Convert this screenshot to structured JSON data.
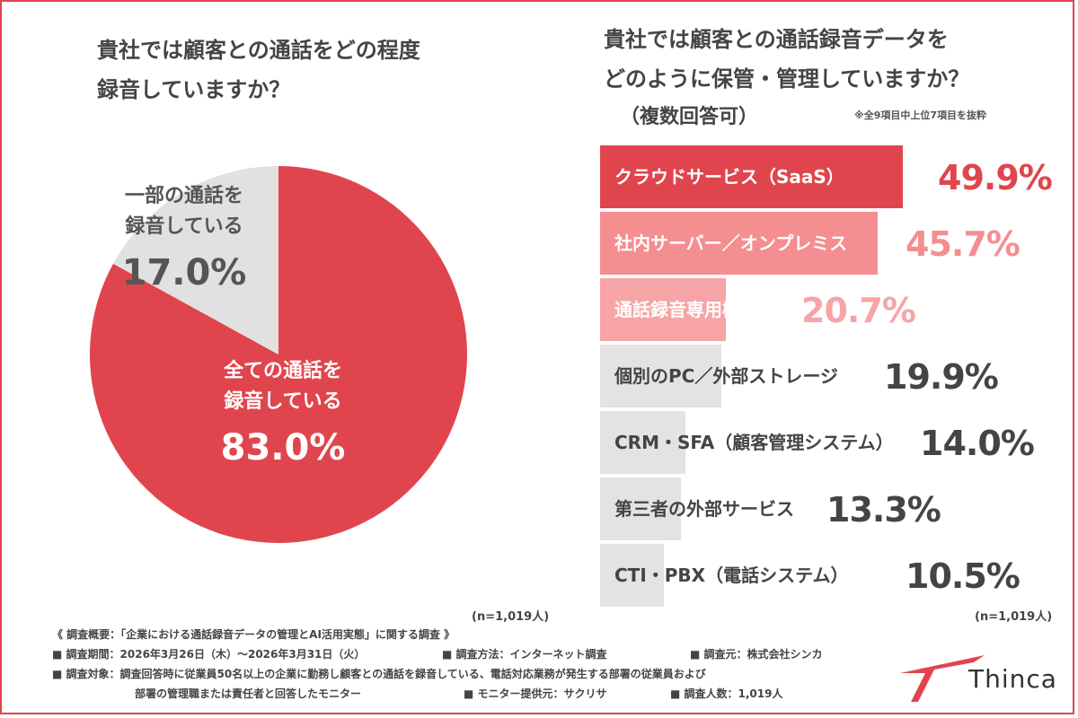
{
  "left_chart": {
    "title_line1": "貴社では顧客との通話をどの程度",
    "title_line2": "録音していますか？",
    "n_label": "(n=1,019人)"
  },
  "right_chart": {
    "title_line1": "貴社では顧客との通話録音データを",
    "title_line2": "どのように保管・管理していますか？",
    "subtitle": "（複数回答可）",
    "note": "※全9項目中上位7項目を抜粋",
    "n_label": "(n=1,019人)"
  },
  "chart_data": [
    {
      "type": "pie",
      "slices": [
        {
          "label_line1": "全ての通話を",
          "label_line2": "録音している",
          "value": 83.0,
          "value_label": "83.0%",
          "color": "#e0454d",
          "label_color": "#ffffff"
        },
        {
          "label_line1": "一部の通話を",
          "label_line2": "録音している",
          "value": 17.0,
          "value_label": "17.0%",
          "color": "#e1e1e1",
          "label_color": "#555555"
        }
      ]
    },
    {
      "type": "bar",
      "orientation": "horizontal",
      "xlim": [
        0,
        50
      ],
      "categories": [
        "クラウドサービス（SaaS）",
        "社内サーバー／オンプレミス",
        "通話録音専用機器",
        "個別のPC／外部ストレージ",
        "CRM・SFA（顧客管理システム）",
        "第三者の外部サービス",
        "CTI・PBX（電話システム）"
      ],
      "values": [
        49.9,
        45.7,
        20.7,
        19.9,
        14.0,
        13.3,
        10.5
      ],
      "value_labels": [
        "49.9%",
        "45.7%",
        "20.7%",
        "19.9%",
        "14.0%",
        "13.3%",
        "10.5%"
      ],
      "bar_colors": [
        "#e0454d",
        "#f48e90",
        "#f6a4a6",
        "#e3e3e3",
        "#e3e3e3",
        "#e3e3e3",
        "#e3e3e3"
      ],
      "label_colors": [
        "#ffffff",
        "#ffffff",
        "#ffffff",
        "#444444",
        "#444444",
        "#444444",
        "#444444"
      ],
      "value_colors": [
        "#e0454d",
        "#f48e90",
        "#f6a4a6",
        "#444444",
        "#444444",
        "#444444",
        "#444444"
      ]
    }
  ],
  "footer": {
    "overview": "《 調査概要：「企業における通話録音データの管理とAI活用実態」に関する調査 》",
    "period": "■ 調査期間：2026年3月26日（木）〜2026年3月31日（火）",
    "method": "■ 調査方法：インターネット調査",
    "source": "■ 調査元：株式会社シンカ",
    "target_line1": "■ 調査対象：調査回答時に従業員50名以上の企業に勤務し顧客との通話を録音している、電話対応業務が発生する部署の従業員および",
    "target_line2": "部署の管理職または責任者と回答したモニター",
    "provider": "■ モニター提供元：サクリサ",
    "count": "■ 調査人数：1,019人"
  },
  "logo": {
    "text": "Thinca",
    "color": "#e0454d"
  }
}
